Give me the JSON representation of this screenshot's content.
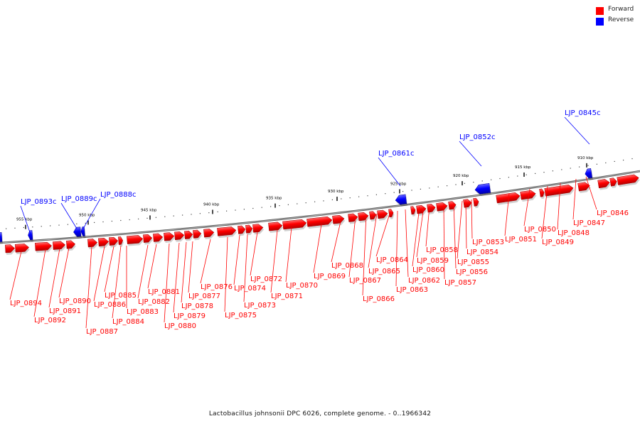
{
  "legend": [
    {
      "label": "Forward",
      "color": "#ff0000"
    },
    {
      "label": "Reverse",
      "color": "#0000ff"
    }
  ],
  "caption": "Lactobacillus johnsonii DPC 6026, complete genome. - 0..1966342",
  "colors": {
    "forward": "#ff0000",
    "reverse": "#0000ff",
    "backbone": "#777777",
    "leader": "#ff0000"
  },
  "ticks": [
    "910 kbp",
    "915 kbp",
    "920 kbp",
    "925 kbp",
    "930 kbp",
    "935 kbp",
    "940 kbp",
    "945 kbp",
    "950 kbp",
    "955 kbp"
  ],
  "reverse_genes": [
    "LJP_0845c",
    "LJP_0852c",
    "LJP_0861c",
    "LJP_0888c",
    "LJP_0889c",
    "LJP_0893c"
  ],
  "forward_genes": [
    "LJP_0846",
    "LJP_0847",
    "LJP_0848",
    "LJP_0849",
    "LJP_0850",
    "LJP_0851",
    "LJP_0853",
    "LJP_0854",
    "LJP_0855",
    "LJP_0856",
    "LJP_0857",
    "LJP_0858",
    "LJP_0859",
    "LJP_0860",
    "LJP_0862",
    "LJP_0863",
    "LJP_0864",
    "LJP_0865",
    "LJP_0866",
    "LJP_0867",
    "LJP_0868",
    "LJP_0869",
    "LJP_0870",
    "LJP_0871",
    "LJP_0872",
    "LJP_0873",
    "LJP_0874",
    "LJP_0875",
    "LJP_0876",
    "LJP_0877",
    "LJP_0878",
    "LJP_0879",
    "LJP_0880",
    "LJP_0881",
    "LJP_0882",
    "LJP_0883",
    "LJP_0884",
    "LJP_0885",
    "LJP_0886",
    "LJP_0887",
    "LJP_0890",
    "LJP_0891",
    "LJP_0892",
    "LJP_0894"
  ]
}
